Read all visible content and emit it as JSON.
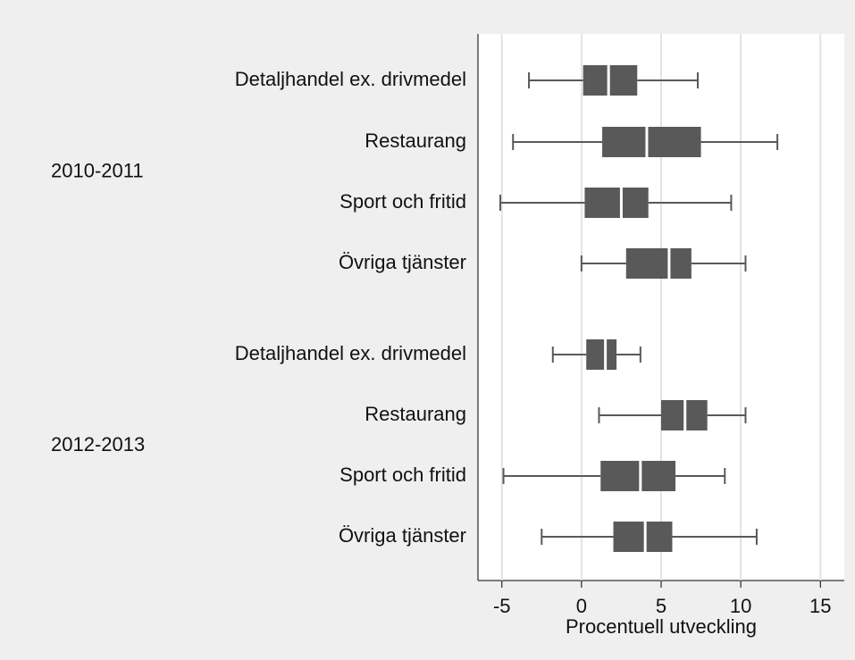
{
  "chart_data": {
    "type": "box",
    "orientation": "horizontal",
    "xlabel": "Procentuell utveckling",
    "xlim": [
      -6.5,
      16.5
    ],
    "xticks": [
      -5,
      0,
      5,
      10,
      15
    ],
    "grid": true,
    "color": "#595959",
    "groups": [
      {
        "name": "2010-2011",
        "categories": [
          "Detaljhandel ex. drivmedel",
          "Restaurang",
          "Sport och fritid",
          "Övriga tjänster"
        ],
        "boxes": [
          {
            "low": -3.3,
            "q1": 0.1,
            "median": 1.7,
            "q3": 3.5,
            "high": 7.3
          },
          {
            "low": -4.3,
            "q1": 1.3,
            "median": 4.1,
            "q3": 7.5,
            "high": 12.3
          },
          {
            "low": -5.1,
            "q1": 0.2,
            "median": 2.5,
            "q3": 4.2,
            "high": 9.4
          },
          {
            "low": 0,
            "q1": 2.8,
            "median": 5.5,
            "q3": 6.9,
            "high": 10.3
          }
        ]
      },
      {
        "name": "2012-2013",
        "categories": [
          "Detaljhandel ex. drivmedel",
          "Restaurang",
          "Sport och fritid",
          "Övriga tjänster"
        ],
        "boxes": [
          {
            "low": -1.8,
            "q1": 0.3,
            "median": 1.5,
            "q3": 2.2,
            "high": 3.7
          },
          {
            "low": 1.1,
            "q1": 5.0,
            "median": 6.5,
            "q3": 7.9,
            "high": 10.3
          },
          {
            "low": -4.9,
            "q1": 1.2,
            "median": 3.7,
            "q3": 5.9,
            "high": 9.0
          },
          {
            "low": -2.5,
            "q1": 2.0,
            "median": 4.0,
            "q3": 5.7,
            "high": 11.0
          }
        ]
      }
    ]
  }
}
